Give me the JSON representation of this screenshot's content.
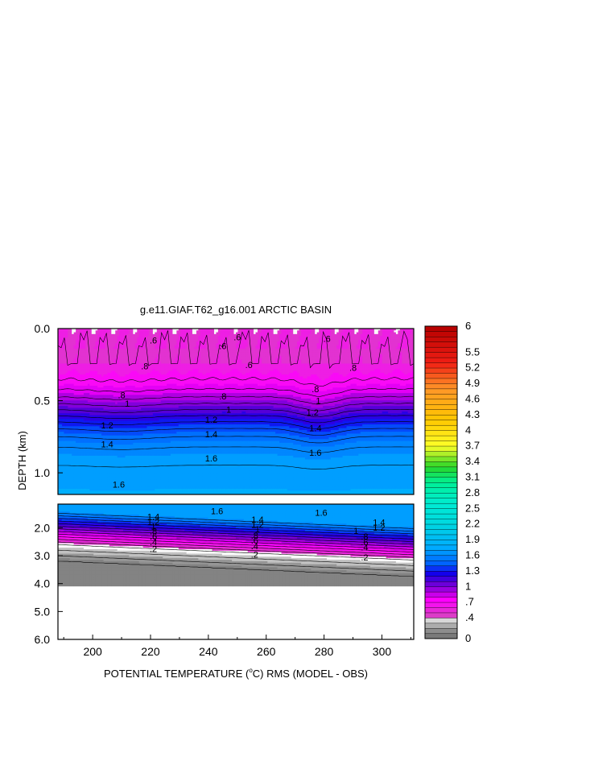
{
  "chart_data": {
    "type": "heatmap",
    "title": "g.e11.GIAF.T62_g16.001 ARCTIC BASIN",
    "xlabel": "POTENTIAL TEMPERATURE (",
    "xlabel_unit": "o",
    "xlabel_unit_tail": "C) RMS (MODEL - OBS)",
    "ylabel": "DEPTH (km)",
    "x_ticks": [
      "200",
      "220",
      "240",
      "260",
      "280",
      "300"
    ],
    "x_tick_values": [
      200,
      220,
      240,
      260,
      280,
      300
    ],
    "xlim": [
      188,
      311
    ],
    "upper_panel": {
      "ylim": [
        0,
        1.15
      ],
      "y_ticks": [
        "0.0",
        "0.5",
        "1.0"
      ],
      "y_tick_values": [
        0,
        0.5,
        1.0
      ]
    },
    "lower_panel": {
      "ylim": [
        1.15,
        6.0
      ],
      "y_ticks": [
        "2.0",
        "3.0",
        "4.0",
        "5.0",
        "6.0"
      ],
      "y_tick_values": [
        2,
        3,
        4,
        5,
        6
      ],
      "data_bottom_km": 4.1
    },
    "colorbar": {
      "labels": [
        "0",
        ".4",
        ".7",
        "1",
        "1.3",
        "1.6",
        "1.9",
        "2.2",
        "2.5",
        "2.8",
        "3.1",
        "3.4",
        "3.7",
        "4",
        "4.3",
        "4.6",
        "4.9",
        "5.2",
        "5.5",
        "6"
      ],
      "label_values": [
        0,
        0.4,
        0.7,
        1,
        1.3,
        1.6,
        1.9,
        2.2,
        2.5,
        2.8,
        3.1,
        3.4,
        3.7,
        4,
        4.3,
        4.6,
        4.9,
        5.2,
        5.5,
        6
      ],
      "range": [
        0,
        6
      ],
      "step": 0.1
    },
    "contour_labels_upper": [
      {
        "text": ".6",
        "x": 221,
        "d": 0.08
      },
      {
        "text": ".6",
        "x": 250,
        "d": 0.06
      },
      {
        "text": ".6",
        "x": 281,
        "d": 0.07
      },
      {
        "text": ".6",
        "x": 245,
        "d": 0.12
      },
      {
        "text": ".8",
        "x": 218,
        "d": 0.26
      },
      {
        "text": ".6",
        "x": 254,
        "d": 0.25
      },
      {
        "text": ".8",
        "x": 290,
        "d": 0.27
      },
      {
        "text": ".8",
        "x": 210,
        "d": 0.46
      },
      {
        "text": ".8",
        "x": 245,
        "d": 0.47
      },
      {
        "text": ".8",
        "x": 277,
        "d": 0.42
      },
      {
        "text": "1",
        "x": 212,
        "d": 0.52
      },
      {
        "text": "1",
        "x": 247,
        "d": 0.56
      },
      {
        "text": "1",
        "x": 278,
        "d": 0.5
      },
      {
        "text": "1.2",
        "x": 205,
        "d": 0.67
      },
      {
        "text": "1.2",
        "x": 241,
        "d": 0.63
      },
      {
        "text": "1.2",
        "x": 276,
        "d": 0.58
      },
      {
        "text": "1.4",
        "x": 205,
        "d": 0.8
      },
      {
        "text": "1.4",
        "x": 241,
        "d": 0.73
      },
      {
        "text": "1.4",
        "x": 277,
        "d": 0.69
      },
      {
        "text": "1.6",
        "x": 241,
        "d": 0.9
      },
      {
        "text": "1.6",
        "x": 277,
        "d": 0.86
      },
      {
        "text": "1.6",
        "x": 209,
        "d": 1.08
      }
    ],
    "contour_labels_lower": [
      {
        "text": "1.6",
        "x": 243,
        "d": 1.4
      },
      {
        "text": "1.6",
        "x": 279,
        "d": 1.45
      },
      {
        "text": "1.4",
        "x": 221,
        "d": 1.6
      },
      {
        "text": "1.4",
        "x": 257,
        "d": 1.7
      },
      {
        "text": "1.4",
        "x": 299,
        "d": 1.8
      },
      {
        "text": "1.2",
        "x": 221,
        "d": 1.78
      },
      {
        "text": "1.2",
        "x": 257,
        "d": 1.88
      },
      {
        "text": "1.2",
        "x": 299,
        "d": 1.98
      },
      {
        "text": "1",
        "x": 221,
        "d": 1.95
      },
      {
        "text": "1",
        "x": 257,
        "d": 2.05
      },
      {
        "text": "1",
        "x": 291,
        "d": 2.1
      },
      {
        "text": ".8",
        "x": 221,
        "d": 2.12
      },
      {
        "text": ".8",
        "x": 256,
        "d": 2.27
      },
      {
        "text": ".8",
        "x": 294,
        "d": 2.3
      },
      {
        "text": ".6",
        "x": 221,
        "d": 2.3
      },
      {
        "text": ".6",
        "x": 256,
        "d": 2.45
      },
      {
        "text": ".6",
        "x": 294,
        "d": 2.5
      },
      {
        "text": ".4",
        "x": 221,
        "d": 2.5
      },
      {
        "text": ".4",
        "x": 256,
        "d": 2.65
      },
      {
        "text": ".4",
        "x": 294,
        "d": 2.7
      },
      {
        "text": ".2",
        "x": 221,
        "d": 2.75
      },
      {
        "text": ".2",
        "x": 256,
        "d": 2.95
      },
      {
        "text": ".2",
        "x": 294,
        "d": 3.05
      }
    ]
  }
}
